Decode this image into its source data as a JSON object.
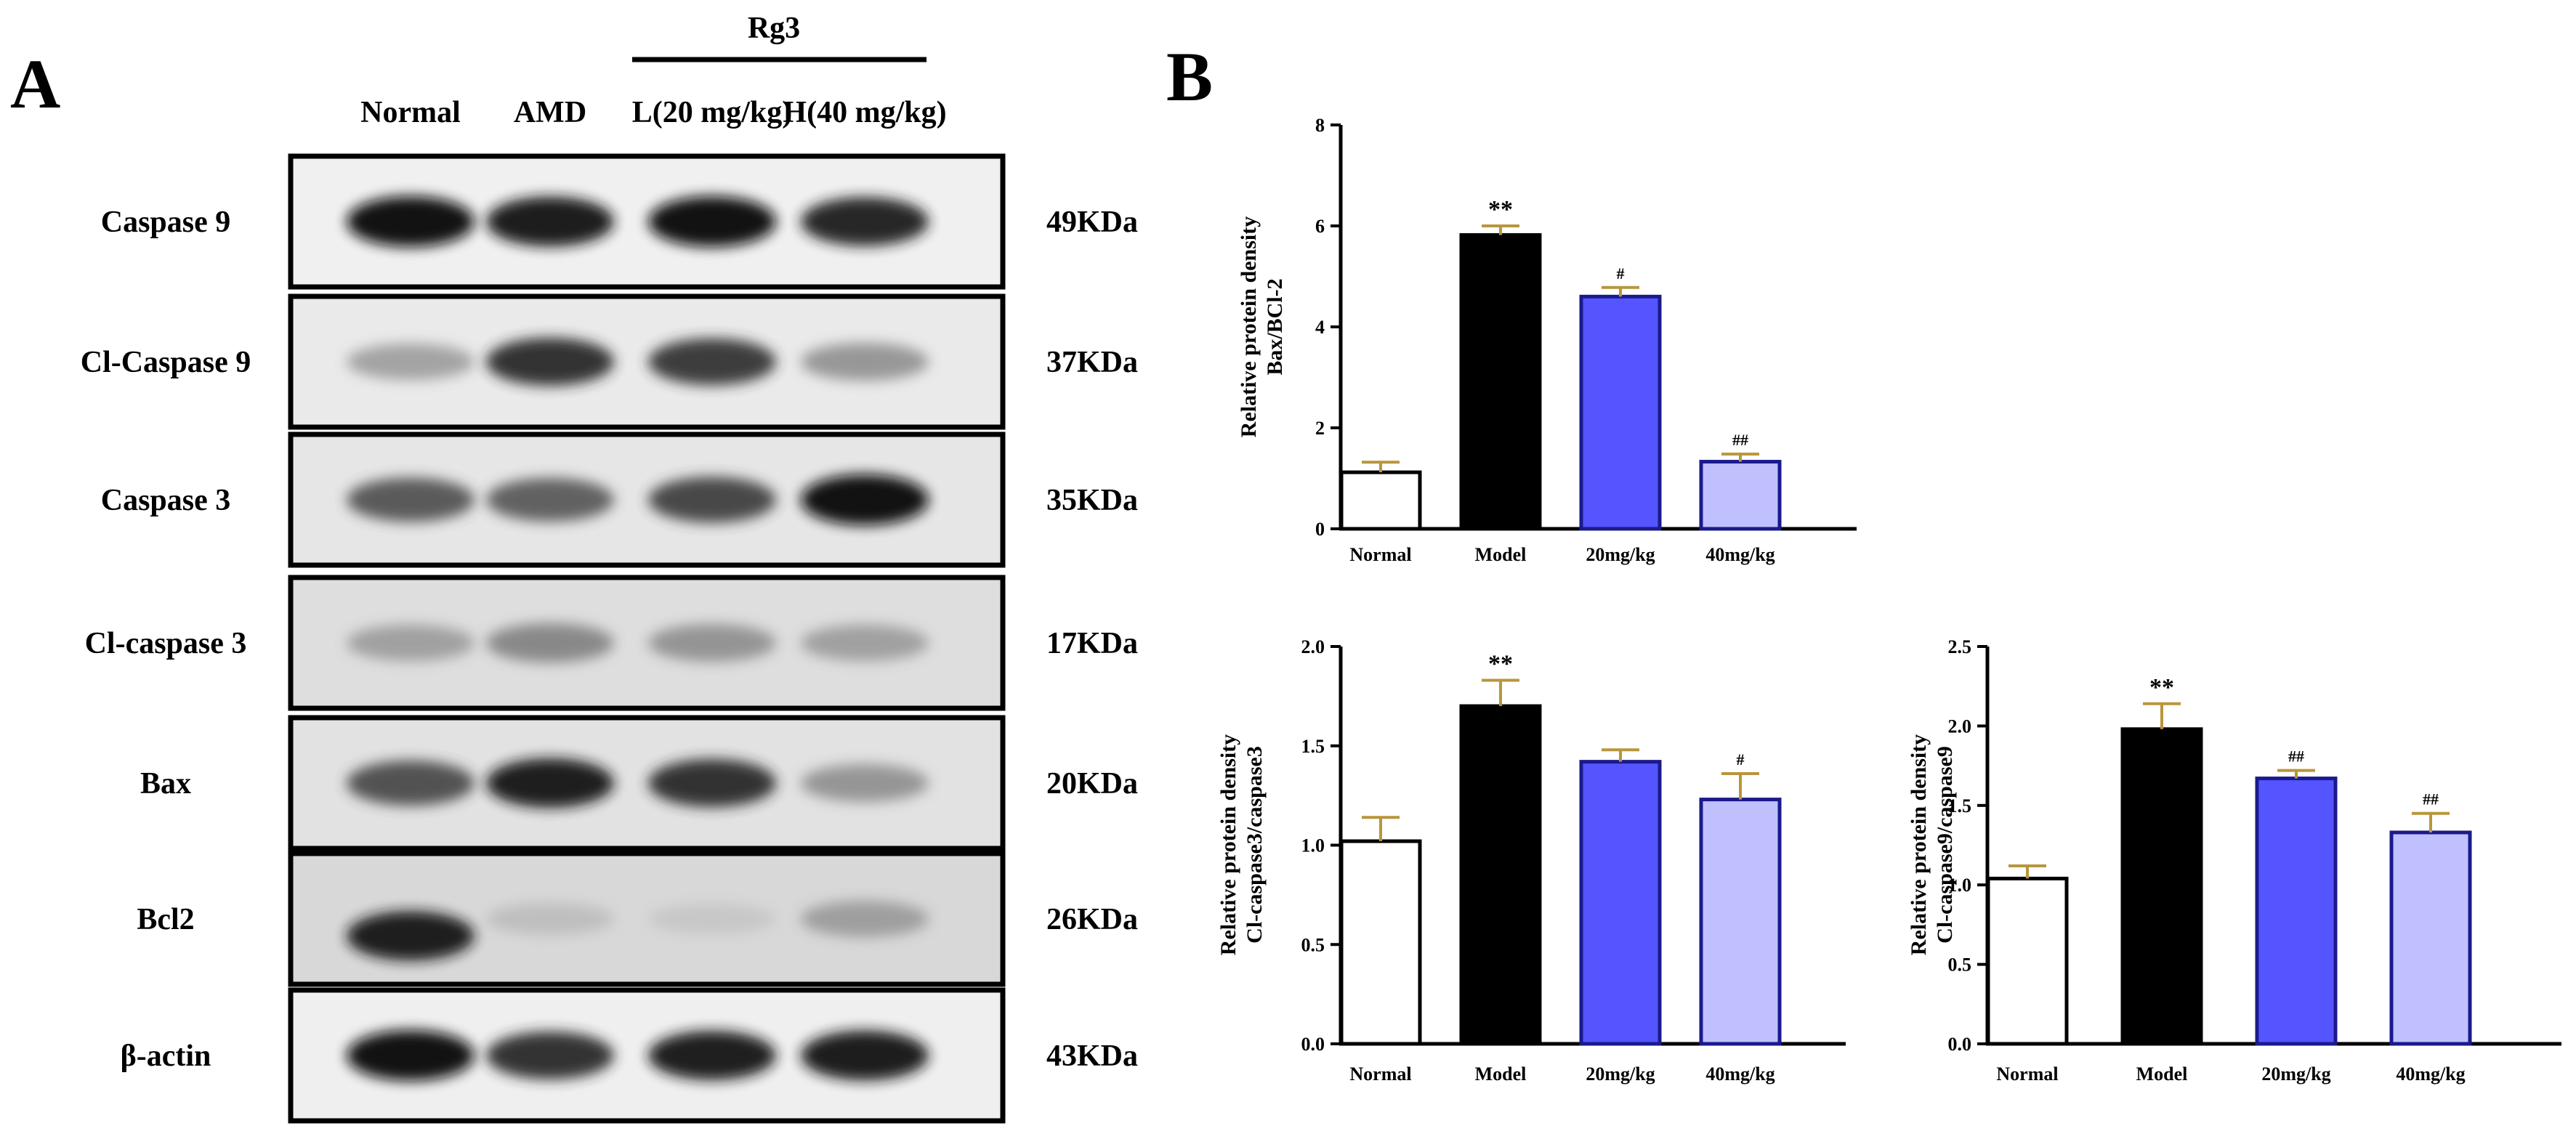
{
  "panel_a": {
    "letter": "A",
    "treatment_label": "Rg3",
    "lanes": [
      "Normal",
      "AMD",
      "L(20 mg/kg)",
      "H(40 mg/kg)"
    ],
    "rows": [
      {
        "label": "Caspase 9",
        "kda": "49KDa",
        "intensity": [
          0.95,
          0.92,
          0.95,
          0.88
        ],
        "bg": "#f0f0f0"
      },
      {
        "label": "Cl-Caspase 9",
        "kda": "37KDa",
        "intensity": [
          0.45,
          0.85,
          0.82,
          0.5
        ],
        "bg": "#eaeaea"
      },
      {
        "label": "Caspase 3",
        "kda": "35KDa",
        "intensity": [
          0.72,
          0.7,
          0.78,
          0.95
        ],
        "bg": "#e6e6e6"
      },
      {
        "label": "Cl-caspase 3",
        "kda": "17KDa",
        "intensity": [
          0.45,
          0.55,
          0.5,
          0.45
        ],
        "bg": "#dedede"
      },
      {
        "label": "Bax",
        "kda": "20KDa",
        "intensity": [
          0.75,
          0.9,
          0.85,
          0.5
        ],
        "bg": "#e2e2e2"
      },
      {
        "label": "Bcl2",
        "kda": "26KDa",
        "intensity": [
          0.9,
          0.3,
          0.25,
          0.45
        ],
        "bg": "#d8d8d8"
      },
      {
        "label": "β-actin",
        "kda": "43KDa",
        "intensity": [
          0.95,
          0.85,
          0.9,
          0.92
        ],
        "bg": "#efefef"
      }
    ]
  },
  "panel_b": {
    "letter": "B"
  },
  "colors": {
    "normal": "#ffffff",
    "model": "#000000",
    "low": "#5555ff",
    "high": "#c0c0ff",
    "bar_edge_blue": "#1a1a8c",
    "error_bar": "#b8963c"
  },
  "chart_data": [
    {
      "type": "bar",
      "categories": [
        "Normal",
        "Model",
        "20mg/kg",
        "40mg/kg"
      ],
      "values": [
        1.12,
        5.82,
        4.6,
        1.33
      ],
      "errors": [
        0.2,
        0.18,
        0.18,
        0.15
      ],
      "significance": [
        "",
        "**",
        "#",
        "##"
      ],
      "ylabel_lines": [
        "Relative protein density",
        "Bax/BCl-2"
      ],
      "ylim": [
        0,
        8
      ],
      "yticks": [
        0,
        2,
        4,
        6,
        8
      ],
      "ytick_labels": [
        "0",
        "2",
        "4",
        "6",
        "8"
      ]
    },
    {
      "type": "bar",
      "categories": [
        "Normal",
        "Model",
        "20mg/kg",
        "40mg/kg"
      ],
      "values": [
        1.02,
        1.7,
        1.42,
        1.23
      ],
      "errors": [
        0.12,
        0.13,
        0.06,
        0.13
      ],
      "significance": [
        "",
        "**",
        "",
        "#"
      ],
      "ylabel_lines": [
        "Relative protein density",
        "Cl-caspase3/caspase3"
      ],
      "ylim": [
        0,
        2
      ],
      "yticks": [
        0,
        0.5,
        1,
        1.5,
        2
      ],
      "ytick_labels": [
        "0.0",
        "0.5",
        "1.0",
        "1.5",
        "2.0"
      ]
    },
    {
      "type": "bar",
      "categories": [
        "Normal",
        "Model",
        "20mg/kg",
        "40mg/kg"
      ],
      "values": [
        1.04,
        1.98,
        1.67,
        1.33
      ],
      "errors": [
        0.08,
        0.16,
        0.05,
        0.12
      ],
      "significance": [
        "",
        "**",
        "##",
        "##"
      ],
      "ylabel_lines": [
        "Relative protein density",
        "Cl-caspase9/caspase9"
      ],
      "ylim": [
        0,
        2.5
      ],
      "yticks": [
        0,
        0.5,
        1,
        1.5,
        2,
        2.5
      ],
      "ytick_labels": [
        "0.0",
        "0.5",
        "1.0",
        "1.5",
        "2.0",
        "2.5"
      ]
    }
  ]
}
